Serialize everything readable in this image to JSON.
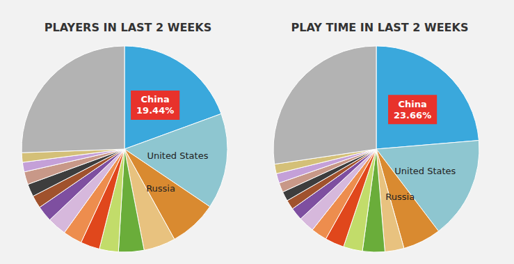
{
  "chart_data": [
    {
      "type": "pie",
      "title": "PLAYERS IN LAST 2 WEEKS",
      "categories": [
        "China",
        "United States",
        "Russia",
        null,
        null,
        null,
        null,
        null,
        null,
        null,
        null,
        null,
        null,
        null,
        null,
        null
      ],
      "values": [
        19.44,
        15,
        7.5,
        5,
        4,
        3,
        3,
        3,
        3,
        2.5,
        2,
        2,
        2,
        1.5,
        1.5,
        25.56
      ],
      "value_labels": [
        "19.44%",
        null,
        null,
        null,
        null,
        null,
        null,
        null,
        null,
        null,
        null,
        null,
        null,
        null,
        null,
        null
      ],
      "colors": [
        "#3aa8dc",
        "#8ec6d0",
        "#d98a30",
        "#e8c27f",
        "#6aad3a",
        "#c2dc6a",
        "#e0471c",
        "#ed8d4e",
        "#d6b8dc",
        "#7e4fa0",
        "#a0522d",
        "#3d3d3d",
        "#c89888",
        "#c4a0d8",
        "#d4c078",
        "#b3b3b3"
      ]
    },
    {
      "type": "pie",
      "title": "PLAY TIME IN LAST 2 WEEKS",
      "categories": [
        "China",
        "United States",
        "Russia",
        null,
        null,
        null,
        null,
        null,
        null,
        null,
        null,
        null,
        null,
        null,
        null,
        null
      ],
      "values": [
        23.66,
        16,
        6,
        3,
        3.5,
        3,
        3,
        2.5,
        2.5,
        2,
        1.5,
        1.5,
        1.5,
        1.5,
        1.5,
        27.34
      ],
      "value_labels": [
        "23.66%",
        null,
        null,
        null,
        null,
        null,
        null,
        null,
        null,
        null,
        null,
        null,
        null,
        null,
        null,
        null
      ],
      "colors": [
        "#3aa8dc",
        "#8ec6d0",
        "#d98a30",
        "#e8c27f",
        "#6aad3a",
        "#c2dc6a",
        "#e0471c",
        "#ed8d4e",
        "#d6b8dc",
        "#7e4fa0",
        "#a0522d",
        "#3d3d3d",
        "#c89888",
        "#c4a0d8",
        "#d4c078",
        "#b3b3b3"
      ]
    }
  ]
}
